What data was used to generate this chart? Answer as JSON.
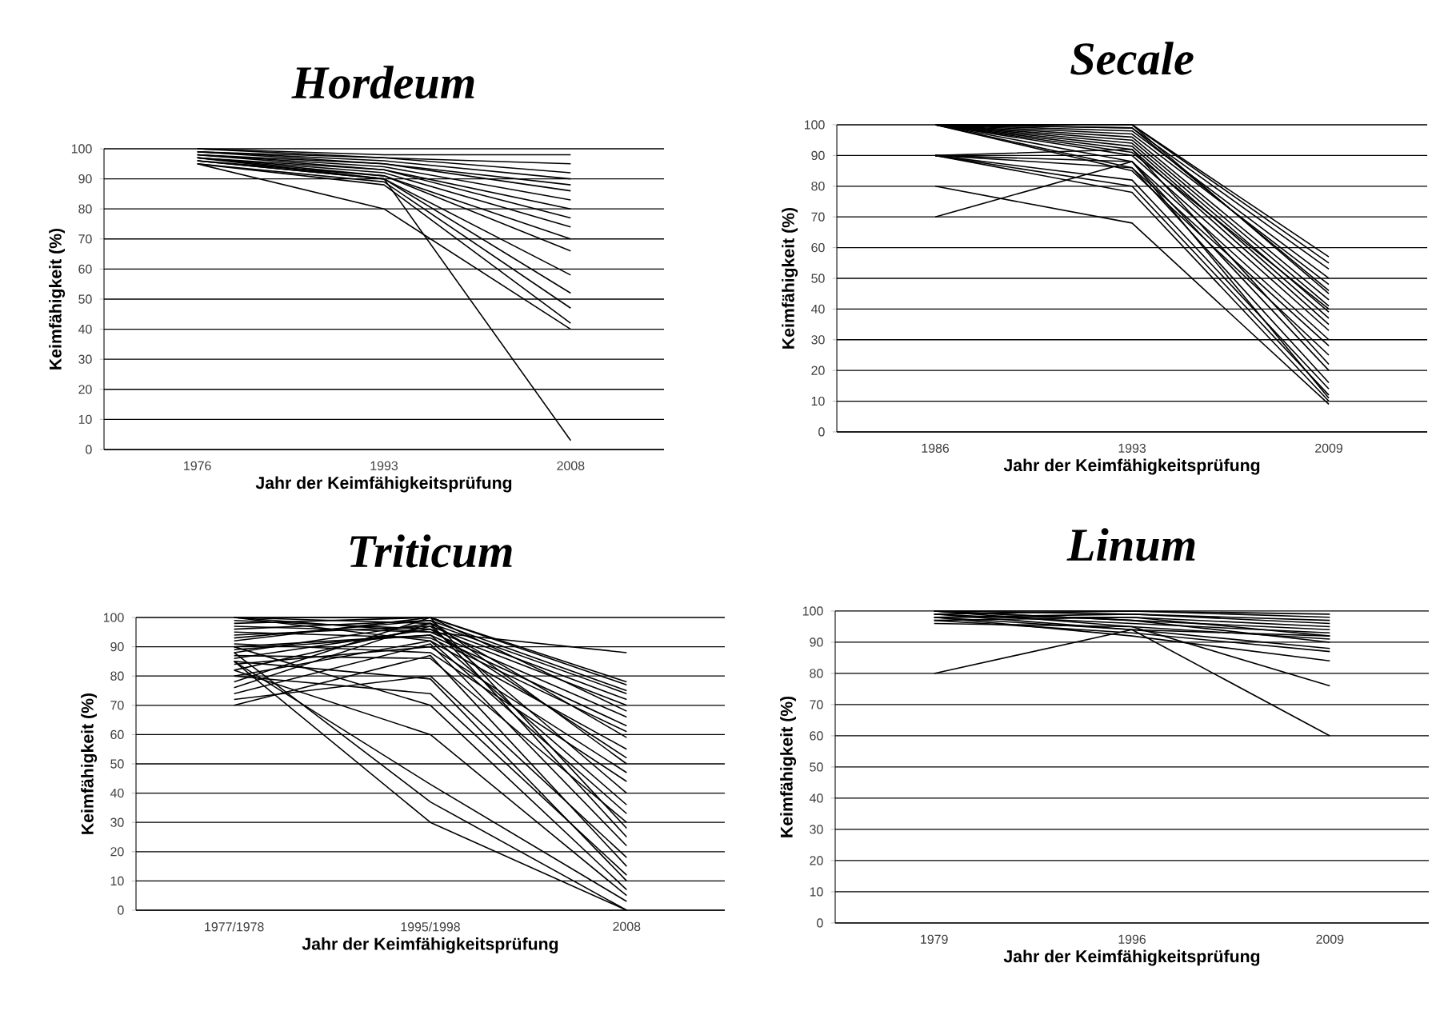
{
  "chart_data": [
    {
      "type": "line",
      "title": "Hordeum",
      "xlabel": "Jahr der Keimfähigkeitsprüfung",
      "ylabel": "Keimfähigkeit (%)",
      "categories": [
        "1976",
        "1993",
        "2008"
      ],
      "ylim": [
        0,
        100
      ],
      "yticks": [
        0,
        10,
        20,
        30,
        40,
        50,
        60,
        70,
        80,
        90,
        100
      ],
      "grid": "y",
      "color": "#000000",
      "series": [
        {
          "values": [
            100,
            98,
            98
          ]
        },
        {
          "values": [
            100,
            97,
            95
          ]
        },
        {
          "values": [
            99,
            97,
            92
          ]
        },
        {
          "values": [
            99,
            96,
            90
          ]
        },
        {
          "values": [
            99,
            95,
            88
          ]
        },
        {
          "values": [
            98,
            95,
            86
          ]
        },
        {
          "values": [
            98,
            94,
            83
          ]
        },
        {
          "values": [
            98,
            93,
            80
          ]
        },
        {
          "values": [
            97,
            93,
            77
          ]
        },
        {
          "values": [
            97,
            92,
            74
          ]
        },
        {
          "values": [
            97,
            91,
            70
          ]
        },
        {
          "values": [
            96,
            91,
            66
          ]
        },
        {
          "values": [
            96,
            90,
            58
          ]
        },
        {
          "values": [
            96,
            90,
            52
          ]
        },
        {
          "values": [
            95,
            89,
            47
          ]
        },
        {
          "values": [
            95,
            88,
            42
          ]
        },
        {
          "values": [
            95,
            80,
            40
          ]
        },
        {
          "values": [
            97,
            90,
            3
          ]
        }
      ]
    },
    {
      "type": "line",
      "title": "Secale",
      "xlabel": "Jahr der Keimfähigkeitsprüfung",
      "ylabel": "Keimfähigkeit (%)",
      "categories": [
        "1986",
        "1993",
        "2009"
      ],
      "ylim": [
        0,
        100
      ],
      "yticks": [
        0,
        10,
        20,
        30,
        40,
        50,
        60,
        70,
        80,
        90,
        100
      ],
      "grid": "y",
      "color": "#000000",
      "series": [
        {
          "values": [
            100,
            100,
            57
          ]
        },
        {
          "values": [
            100,
            100,
            55
          ]
        },
        {
          "values": [
            100,
            99,
            53
          ]
        },
        {
          "values": [
            100,
            98,
            50
          ]
        },
        {
          "values": [
            100,
            97,
            48
          ]
        },
        {
          "values": [
            100,
            100,
            45
          ]
        },
        {
          "values": [
            100,
            96,
            43
          ]
        },
        {
          "values": [
            100,
            95,
            41
          ]
        },
        {
          "values": [
            100,
            94,
            39
          ]
        },
        {
          "values": [
            100,
            93,
            37
          ]
        },
        {
          "values": [
            100,
            92,
            35
          ]
        },
        {
          "values": [
            100,
            90,
            33
          ]
        },
        {
          "values": [
            100,
            88,
            30
          ]
        },
        {
          "values": [
            100,
            86,
            28
          ]
        },
        {
          "values": [
            100,
            85,
            25
          ]
        },
        {
          "values": [
            90,
            92,
            22
          ]
        },
        {
          "values": [
            90,
            88,
            20
          ]
        },
        {
          "values": [
            90,
            86,
            16
          ]
        },
        {
          "values": [
            90,
            82,
            14
          ]
        },
        {
          "values": [
            90,
            80,
            12
          ]
        },
        {
          "values": [
            90,
            78,
            10
          ]
        },
        {
          "values": [
            80,
            68,
            9
          ]
        },
        {
          "values": [
            70,
            88,
            11
          ]
        },
        {
          "values": [
            100,
            99,
            46
          ]
        },
        {
          "values": [
            100,
            91,
            40
          ]
        }
      ]
    },
    {
      "type": "line",
      "title": "Triticum",
      "xlabel": "Jahr der Keimfähigkeitsprüfung",
      "ylabel": "Keimfähigkeit (%)",
      "categories": [
        "1977/1978",
        "1995/1998",
        "2008"
      ],
      "ylim": [
        0,
        100
      ],
      "yticks": [
        0,
        10,
        20,
        30,
        40,
        50,
        60,
        70,
        80,
        90,
        100
      ],
      "grid": "y",
      "color": "#000000",
      "series": [
        {
          "values": [
            100,
            95,
            88
          ]
        },
        {
          "values": [
            100,
            100,
            78
          ]
        },
        {
          "values": [
            98,
            100,
            77
          ]
        },
        {
          "values": [
            96,
            99,
            75
          ]
        },
        {
          "values": [
            100,
            98,
            74
          ]
        },
        {
          "values": [
            94,
            97,
            72
          ]
        },
        {
          "values": [
            99,
            96,
            70
          ]
        },
        {
          "values": [
            92,
            100,
            68
          ]
        },
        {
          "values": [
            97,
            95,
            66
          ]
        },
        {
          "values": [
            90,
            94,
            63
          ]
        },
        {
          "values": [
            95,
            93,
            61
          ]
        },
        {
          "values": [
            88,
            98,
            59
          ]
        },
        {
          "values": [
            100,
            92,
            55
          ]
        },
        {
          "values": [
            86,
            96,
            52
          ]
        },
        {
          "values": [
            93,
            99,
            50
          ]
        },
        {
          "values": [
            84,
            90,
            47
          ]
        },
        {
          "values": [
            91,
            88,
            44
          ]
        },
        {
          "values": [
            82,
            97,
            40
          ]
        },
        {
          "values": [
            89,
            94,
            36
          ]
        },
        {
          "values": [
            80,
            92,
            33
          ]
        },
        {
          "values": [
            87,
            86,
            30
          ]
        },
        {
          "values": [
            78,
            100,
            28
          ]
        },
        {
          "values": [
            76,
            98,
            25
          ]
        },
        {
          "values": [
            74,
            91,
            22
          ]
        },
        {
          "values": [
            72,
            80,
            18
          ]
        },
        {
          "values": [
            70,
            87,
            15
          ]
        },
        {
          "values": [
            80,
            74,
            12
          ]
        },
        {
          "values": [
            85,
            79,
            10
          ]
        },
        {
          "values": [
            90,
            70,
            7
          ]
        },
        {
          "values": [
            82,
            60,
            5
          ]
        },
        {
          "values": [
            85,
            43,
            3
          ]
        },
        {
          "values": [
            88,
            37,
            0
          ]
        },
        {
          "values": [
            85,
            30,
            0
          ]
        }
      ]
    },
    {
      "type": "line",
      "title": "Linum",
      "xlabel": "Jahr der Keimfähigkeitsprüfung",
      "ylabel": "Keimfähigkeit (%)",
      "categories": [
        "1979",
        "1996",
        "2009"
      ],
      "ylim": [
        0,
        100
      ],
      "yticks": [
        0,
        10,
        20,
        30,
        40,
        50,
        60,
        70,
        80,
        90,
        100
      ],
      "grid": "y",
      "color": "#000000",
      "series": [
        {
          "values": [
            100,
            100,
            99
          ]
        },
        {
          "values": [
            99,
            100,
            98
          ]
        },
        {
          "values": [
            100,
            99,
            97
          ]
        },
        {
          "values": [
            98,
            99,
            96
          ]
        },
        {
          "values": [
            97,
            98,
            95
          ]
        },
        {
          "values": [
            100,
            97,
            94
          ]
        },
        {
          "values": [
            99,
            96,
            93
          ]
        },
        {
          "values": [
            98,
            98,
            92
          ]
        },
        {
          "values": [
            96,
            95,
            91
          ]
        },
        {
          "values": [
            100,
            97,
            90
          ]
        },
        {
          "values": [
            99,
            94,
            88
          ]
        },
        {
          "values": [
            97,
            93,
            87
          ]
        },
        {
          "values": [
            98,
            92,
            84
          ]
        },
        {
          "values": [
            100,
            95,
            76
          ]
        },
        {
          "values": [
            98,
            94,
            60
          ]
        },
        {
          "values": [
            80,
            94,
            92
          ]
        }
      ]
    }
  ]
}
